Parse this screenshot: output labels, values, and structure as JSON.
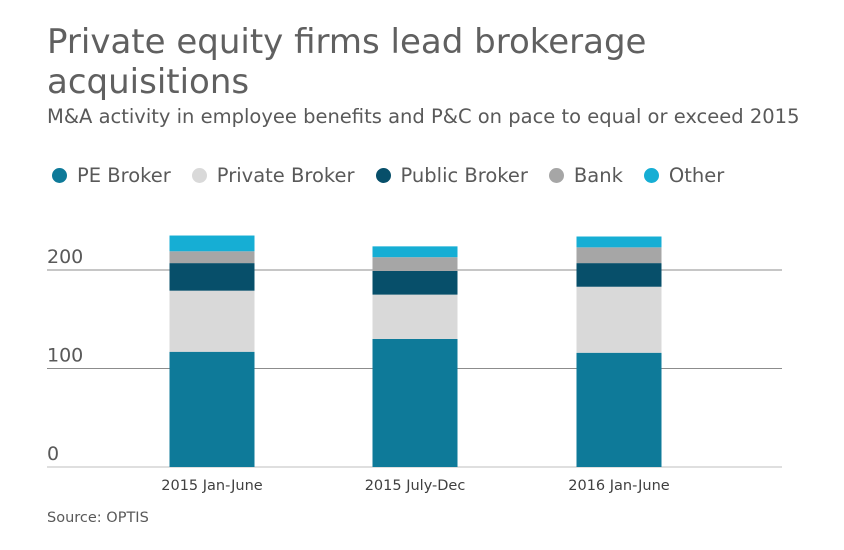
{
  "header": {
    "title": "Private equity firms lead brokerage acquisitions",
    "subtitle": "M&A activity in employee benefits and P&C on pace to equal or exceed 2015"
  },
  "legend": [
    {
      "label": "PE Broker",
      "color": "#0e7a99"
    },
    {
      "label": "Private Broker",
      "color": "#d9d9d9"
    },
    {
      "label": "Public Broker",
      "color": "#074f6a"
    },
    {
      "label": "Bank",
      "color": "#a6a6a6"
    },
    {
      "label": "Other",
      "color": "#16aed4"
    }
  ],
  "footer": {
    "source": "Source: OPTIS"
  },
  "chart_data": {
    "type": "bar",
    "stacked": true,
    "categories": [
      "2015 Jan-June",
      "2015 July-Dec",
      "2016 Jan-June"
    ],
    "series": [
      {
        "name": "PE Broker",
        "color": "#0e7a99",
        "values": [
          117,
          130,
          116
        ]
      },
      {
        "name": "Private Broker",
        "color": "#d9d9d9",
        "values": [
          62,
          45,
          67
        ]
      },
      {
        "name": "Public Broker",
        "color": "#074f6a",
        "values": [
          28,
          24,
          24
        ]
      },
      {
        "name": "Bank",
        "color": "#a6a6a6",
        "values": [
          12,
          14,
          16
        ]
      },
      {
        "name": "Other",
        "color": "#16aed4",
        "values": [
          16,
          11,
          11
        ]
      }
    ],
    "yticks": [
      0,
      100,
      200
    ],
    "ylim": [
      0,
      240
    ],
    "grid": true,
    "legend_position": "top"
  }
}
